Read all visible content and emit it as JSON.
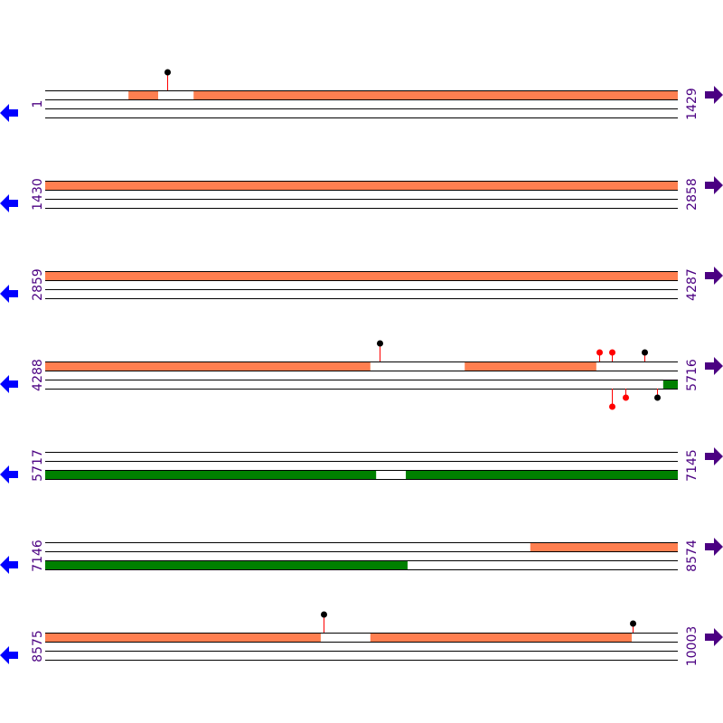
{
  "colors": {
    "forward_feature": "#ff7f50",
    "reverse_feature": "#008000",
    "strand_line": "#000000",
    "stem": "#ff0000",
    "label": "#4b0082",
    "left_arrow": "#0000ff",
    "right_arrow": "#4b0082"
  },
  "icons": {
    "left": "arrow-left-icon",
    "right": "arrow-right-icon"
  },
  "rows": [
    {
      "start": "1",
      "end": "1429",
      "top": [
        [
          189,
          256
        ],
        [
          336,
          1429
        ]
      ],
      "bottom": [],
      "markers": [
        {
          "pos": 277,
          "strand": "top",
          "tier": 2,
          "head": "#000000"
        }
      ]
    },
    {
      "start": "1430",
      "end": "2858",
      "top": [
        [
          1430,
          2858
        ]
      ],
      "bottom": [],
      "markers": []
    },
    {
      "start": "2859",
      "end": "4287",
      "top": [
        [
          2859,
          4287
        ]
      ],
      "bottom": [],
      "markers": []
    },
    {
      "start": "4288",
      "end": "5716",
      "top": [
        [
          4288,
          5022
        ],
        [
          5235,
          5532
        ]
      ],
      "bottom": [
        [
          5683,
          5716
        ]
      ],
      "markers": [
        {
          "pos": 5043,
          "strand": "top",
          "tier": 2,
          "head": "#000000"
        },
        {
          "pos": 5539,
          "strand": "top",
          "tier": 1,
          "head": "#ff0000"
        },
        {
          "pos": 5567,
          "strand": "top",
          "tier": 1,
          "head": "#ff0000"
        },
        {
          "pos": 5640,
          "strand": "top",
          "tier": 1,
          "head": "#000000"
        },
        {
          "pos": 5567,
          "strand": "bottom",
          "tier": 2,
          "head": "#ff0000"
        },
        {
          "pos": 5598,
          "strand": "bottom",
          "tier": 1,
          "head": "#ff0000"
        },
        {
          "pos": 5669,
          "strand": "bottom",
          "tier": 1,
          "head": "#000000"
        }
      ]
    },
    {
      "start": "5717",
      "end": "7145",
      "top": [],
      "bottom": [
        [
          5717,
          6464
        ],
        [
          6531,
          7145
        ]
      ],
      "markers": []
    },
    {
      "start": "7146",
      "end": "8574",
      "top": [
        [
          8241,
          8574
        ]
      ],
      "bottom": [
        [
          7146,
          7964
        ]
      ],
      "markers": []
    },
    {
      "start": "8575",
      "end": "10003",
      "top": [
        [
          8575,
          9197
        ],
        [
          9309,
          9899
        ]
      ],
      "bottom": [],
      "markers": [
        {
          "pos": 9203,
          "strand": "top",
          "tier": 2,
          "head": "#000000"
        },
        {
          "pos": 9901,
          "strand": "top",
          "tier": 1,
          "head": "#000000"
        }
      ]
    }
  ]
}
